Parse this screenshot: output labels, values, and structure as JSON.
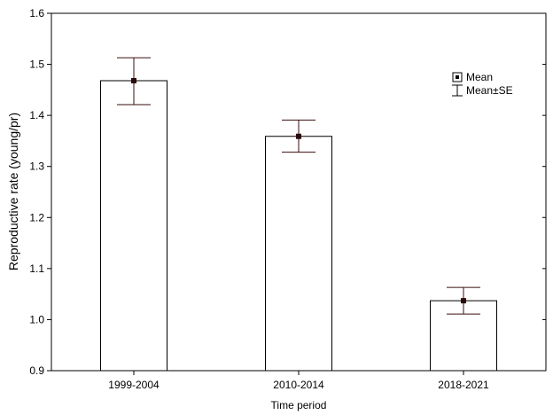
{
  "chart_data": {
    "type": "bar",
    "title": "",
    "xlabel": "Time period",
    "ylabel": "Reproductive rate (young/pr)",
    "categories": [
      "1999-2004",
      "2010-2014",
      "2018-2021"
    ],
    "series": [
      {
        "values": [
          1.468,
          1.359,
          1.037
        ],
        "se_low": [
          1.421,
          1.328,
          1.011
        ],
        "se_high": [
          1.513,
          1.391,
          1.063
        ]
      }
    ],
    "ylim": [
      0.9,
      1.6
    ],
    "yticks": [
      "0.9",
      "1.0",
      "1.1",
      "1.2",
      "1.3",
      "1.4",
      "1.5",
      "1.6"
    ],
    "grid": false,
    "legend": {
      "placement": "top-right",
      "entries": [
        "Mean",
        "Mean±SE"
      ]
    },
    "colors": {
      "bar_fill": "#ffffff",
      "bar_stroke": "#000000",
      "error_bar": "#3a0d0d",
      "marker": "#2a0a0a"
    }
  }
}
